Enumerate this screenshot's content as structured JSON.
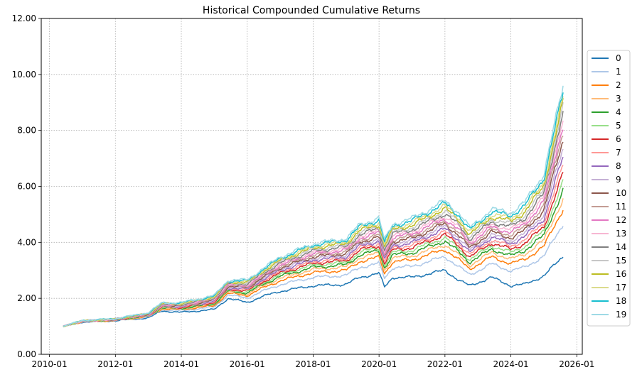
{
  "chart_data": {
    "type": "line",
    "title": "Historical Compounded Cumulative Returns",
    "xlabel": "",
    "ylabel": "",
    "x_ticks": [
      "2010-01",
      "2012-01",
      "2014-01",
      "2016-01",
      "2018-01",
      "2020-01",
      "2022-01",
      "2024-01",
      "2026-01"
    ],
    "y_ticks": [
      "0.00",
      "2.00",
      "4.00",
      "6.00",
      "8.00",
      "10.00",
      "12.00"
    ],
    "ylim": [
      0,
      12
    ],
    "xlim": [
      "2009-10",
      "2026-03"
    ],
    "grid": true,
    "legend_position": "right",
    "x": [
      "2010-06",
      "2011-01",
      "2012-01",
      "2013-01",
      "2013-06",
      "2014-01",
      "2015-01",
      "2015-06",
      "2016-01",
      "2016-06",
      "2017-01",
      "2018-01",
      "2019-01",
      "2019-06",
      "2020-01",
      "2020-03",
      "2020-06",
      "2021-01",
      "2022-01",
      "2022-06",
      "2022-10",
      "2023-06",
      "2024-01",
      "2024-06",
      "2025-01",
      "2025-08"
    ],
    "series": [
      {
        "name": "0",
        "color": "#1f77b4",
        "values": [
          1.0,
          1.15,
          1.2,
          1.3,
          1.55,
          1.5,
          1.6,
          2.0,
          1.85,
          2.05,
          2.25,
          2.45,
          2.5,
          2.75,
          2.9,
          2.4,
          2.75,
          2.75,
          3.0,
          2.65,
          2.45,
          2.75,
          2.45,
          2.5,
          2.8,
          3.5
        ]
      },
      {
        "name": "1",
        "color": "#aec7e8",
        "values": [
          1.0,
          1.16,
          1.21,
          1.33,
          1.59,
          1.56,
          1.69,
          2.12,
          2.01,
          2.23,
          2.49,
          2.75,
          2.82,
          3.11,
          3.25,
          2.72,
          3.1,
          3.14,
          3.49,
          3.13,
          2.84,
          3.23,
          2.98,
          3.11,
          3.5,
          4.65
        ]
      },
      {
        "name": "2",
        "color": "#ff7f0e",
        "values": [
          1.0,
          1.16,
          1.21,
          1.35,
          1.62,
          1.6,
          1.74,
          2.18,
          2.1,
          2.34,
          2.63,
          2.92,
          3.0,
          3.32,
          3.47,
          2.89,
          3.31,
          3.37,
          3.75,
          3.38,
          3.05,
          3.48,
          3.24,
          3.39,
          3.85,
          5.2
        ]
      },
      {
        "name": "3",
        "color": "#ffbb78",
        "values": [
          1.0,
          1.17,
          1.22,
          1.36,
          1.64,
          1.62,
          1.78,
          2.23,
          2.15,
          2.41,
          2.72,
          3.03,
          3.12,
          3.45,
          3.61,
          3.0,
          3.45,
          3.51,
          3.92,
          3.54,
          3.18,
          3.64,
          3.4,
          3.57,
          4.07,
          5.55
        ]
      },
      {
        "name": "4",
        "color": "#2ca02c",
        "values": [
          1.0,
          1.17,
          1.22,
          1.37,
          1.66,
          1.64,
          1.8,
          2.26,
          2.19,
          2.46,
          2.79,
          3.11,
          3.2,
          3.55,
          3.71,
          3.09,
          3.55,
          3.62,
          4.05,
          3.66,
          3.29,
          3.76,
          3.52,
          3.71,
          4.24,
          5.85
        ]
      },
      {
        "name": "5",
        "color": "#98df8a",
        "values": [
          1.0,
          1.17,
          1.23,
          1.38,
          1.67,
          1.66,
          1.83,
          2.29,
          2.23,
          2.51,
          2.85,
          3.19,
          3.28,
          3.64,
          3.81,
          3.17,
          3.64,
          3.72,
          4.17,
          3.78,
          3.38,
          3.88,
          3.64,
          3.84,
          4.4,
          6.15
        ]
      },
      {
        "name": "6",
        "color": "#d62728",
        "values": [
          1.0,
          1.18,
          1.23,
          1.39,
          1.69,
          1.67,
          1.85,
          2.32,
          2.27,
          2.55,
          2.9,
          3.25,
          3.35,
          3.72,
          3.89,
          3.24,
          3.73,
          3.81,
          4.28,
          3.88,
          3.47,
          3.98,
          3.75,
          3.96,
          4.55,
          6.45
        ]
      },
      {
        "name": "7",
        "color": "#ff9896",
        "values": [
          1.0,
          1.18,
          1.23,
          1.4,
          1.7,
          1.69,
          1.87,
          2.35,
          2.3,
          2.59,
          2.95,
          3.31,
          3.42,
          3.8,
          3.97,
          3.31,
          3.81,
          3.9,
          4.38,
          3.98,
          3.56,
          4.08,
          3.86,
          4.08,
          4.7,
          6.75
        ]
      },
      {
        "name": "8",
        "color": "#9467bd",
        "values": [
          1.0,
          1.18,
          1.24,
          1.41,
          1.71,
          1.7,
          1.89,
          2.37,
          2.33,
          2.63,
          3.0,
          3.37,
          3.48,
          3.87,
          4.05,
          3.38,
          3.88,
          3.98,
          4.48,
          4.08,
          3.64,
          4.18,
          3.96,
          4.2,
          4.85,
          7.05
        ]
      },
      {
        "name": "9",
        "color": "#c5b0d5",
        "values": [
          1.0,
          1.18,
          1.24,
          1.41,
          1.72,
          1.71,
          1.91,
          2.4,
          2.36,
          2.67,
          3.05,
          3.43,
          3.54,
          3.94,
          4.12,
          3.44,
          3.96,
          4.06,
          4.58,
          4.17,
          3.72,
          4.27,
          4.06,
          4.31,
          5.0,
          7.35
        ]
      },
      {
        "name": "10",
        "color": "#8c564b",
        "values": [
          1.0,
          1.19,
          1.24,
          1.42,
          1.74,
          1.73,
          1.93,
          2.42,
          2.39,
          2.7,
          3.09,
          3.48,
          3.6,
          4.01,
          4.2,
          3.5,
          4.03,
          4.14,
          4.67,
          4.26,
          3.8,
          4.37,
          4.16,
          4.42,
          5.15,
          7.65
        ]
      },
      {
        "name": "11",
        "color": "#c49c94",
        "values": [
          1.0,
          1.19,
          1.25,
          1.43,
          1.75,
          1.74,
          1.95,
          2.45,
          2.42,
          2.74,
          3.14,
          3.54,
          3.66,
          4.08,
          4.27,
          3.57,
          4.1,
          4.22,
          4.76,
          4.35,
          3.88,
          4.46,
          4.26,
          4.53,
          5.3,
          7.95
        ]
      },
      {
        "name": "12",
        "color": "#e377c2",
        "values": [
          1.0,
          1.19,
          1.25,
          1.44,
          1.76,
          1.76,
          1.97,
          2.47,
          2.45,
          2.77,
          3.18,
          3.59,
          3.72,
          4.15,
          4.35,
          3.63,
          4.17,
          4.3,
          4.85,
          4.44,
          3.96,
          4.55,
          4.36,
          4.64,
          5.45,
          8.2
        ]
      },
      {
        "name": "13",
        "color": "#f7b6d2",
        "values": [
          1.0,
          1.19,
          1.25,
          1.44,
          1.77,
          1.77,
          1.99,
          2.5,
          2.48,
          2.81,
          3.22,
          3.64,
          3.78,
          4.21,
          4.42,
          3.69,
          4.24,
          4.37,
          4.94,
          4.53,
          4.04,
          4.64,
          4.46,
          4.75,
          5.6,
          8.45
        ]
      },
      {
        "name": "14",
        "color": "#7f7f7f",
        "values": [
          1.0,
          1.2,
          1.26,
          1.45,
          1.78,
          1.78,
          2.01,
          2.52,
          2.51,
          2.84,
          3.26,
          3.69,
          3.84,
          4.28,
          4.49,
          3.75,
          4.31,
          4.45,
          5.03,
          4.62,
          4.12,
          4.73,
          4.56,
          4.86,
          5.74,
          8.65
        ]
      },
      {
        "name": "15",
        "color": "#c7c7c7",
        "values": [
          1.0,
          1.2,
          1.26,
          1.46,
          1.8,
          1.8,
          2.03,
          2.55,
          2.54,
          2.88,
          3.31,
          3.75,
          3.9,
          4.35,
          4.57,
          3.82,
          4.38,
          4.53,
          5.12,
          4.71,
          4.2,
          4.82,
          4.66,
          4.97,
          5.88,
          8.85
        ]
      },
      {
        "name": "16",
        "color": "#bcbd22",
        "values": [
          1.0,
          1.2,
          1.26,
          1.46,
          1.81,
          1.81,
          2.04,
          2.57,
          2.57,
          2.91,
          3.35,
          3.8,
          3.96,
          4.42,
          4.64,
          3.88,
          4.45,
          4.61,
          5.21,
          4.8,
          4.28,
          4.91,
          4.76,
          5.08,
          6.02,
          9.0
        ]
      },
      {
        "name": "17",
        "color": "#dbdb8d",
        "values": [
          1.0,
          1.2,
          1.27,
          1.47,
          1.82,
          1.82,
          2.06,
          2.6,
          2.6,
          2.95,
          3.39,
          3.85,
          4.02,
          4.49,
          4.72,
          3.94,
          4.52,
          4.69,
          5.3,
          4.89,
          4.36,
          5.0,
          4.86,
          5.19,
          6.16,
          9.15
        ]
      },
      {
        "name": "18",
        "color": "#17becf",
        "values": [
          1.0,
          1.21,
          1.27,
          1.48,
          1.83,
          1.84,
          2.08,
          2.62,
          2.63,
          2.98,
          3.43,
          3.9,
          4.08,
          4.56,
          4.8,
          4.0,
          4.59,
          4.77,
          5.39,
          4.98,
          4.44,
          5.09,
          4.96,
          5.3,
          6.3,
          9.35
        ]
      },
      {
        "name": "19",
        "color": "#9edae5",
        "values": [
          1.0,
          1.21,
          1.27,
          1.49,
          1.84,
          1.85,
          2.1,
          2.65,
          2.66,
          3.02,
          3.48,
          3.95,
          4.14,
          4.63,
          4.88,
          4.07,
          4.66,
          4.85,
          5.48,
          5.07,
          4.52,
          5.18,
          5.06,
          5.42,
          6.45,
          9.6
        ]
      }
    ]
  }
}
